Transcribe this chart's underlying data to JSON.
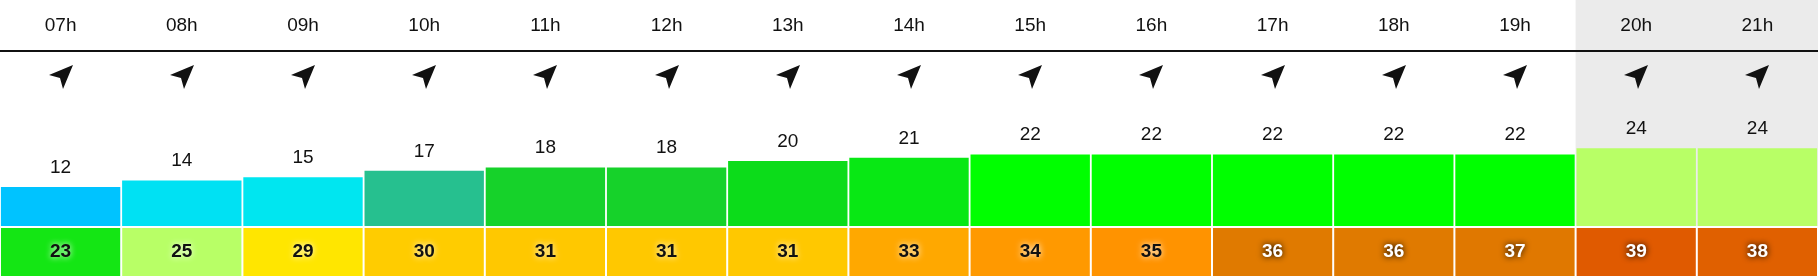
{
  "chart_data": [
    {
      "type": "bar",
      "categories": [
        "07h",
        "08h",
        "09h",
        "10h",
        "11h",
        "12h",
        "13h",
        "14h",
        "15h",
        "16h",
        "17h",
        "18h",
        "19h",
        "20h",
        "21h"
      ],
      "values": [
        12,
        14,
        15,
        17,
        18,
        18,
        20,
        21,
        22,
        22,
        22,
        22,
        22,
        24,
        24
      ],
      "colors": [
        "#00c3ff",
        "#00e1f3",
        "#00e6f0",
        "#26c08f",
        "#16d22a",
        "#16d22a",
        "#0cdc1a",
        "#08e814",
        "#00ff00",
        "#00ff00",
        "#00ff00",
        "#00ff00",
        "#00ff00",
        "#b8ff66",
        "#b8ff66"
      ],
      "ylim": [
        0,
        54
      ],
      "tick_labels": "x",
      "data_labels": true,
      "grid": false,
      "legend": false,
      "bands": [
        {
          "axis": "x",
          "from": "20h",
          "to": "21h",
          "color": "#ebebeb"
        }
      ]
    },
    {
      "type": "other",
      "values": [
        23,
        25,
        29,
        30,
        31,
        31,
        31,
        33,
        34,
        35,
        36,
        36,
        37,
        39,
        38
      ],
      "colors": [
        "#14e614",
        "#b8ff66",
        "#ffe600",
        "#ffcc00",
        "#ffc800",
        "#ffc800",
        "#ffc800",
        "#ffa800",
        "#ff9900",
        "#ff9300",
        "#e07a00",
        "#e07a00",
        "#e07800",
        "#e05a00",
        "#e06000"
      ],
      "data_labels": true
    }
  ]
}
